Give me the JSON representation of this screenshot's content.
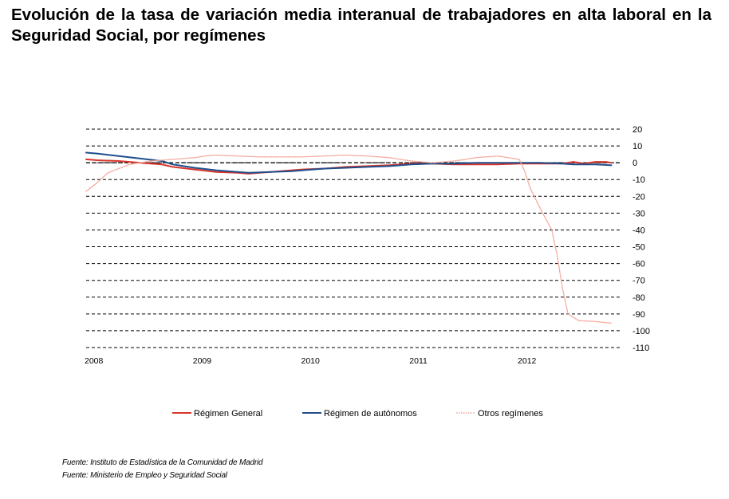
{
  "title": "Evolución de la tasa de variación media interanual de trabajadores en alta laboral en la Seguridad Social, por  regímenes",
  "sources": [
    "Fuente: Instituto de Estadística de la Comunidad de Madrid",
    "Fuente: Ministerio de Empleo y Seguridad Social"
  ],
  "chart_data": {
    "type": "line",
    "title": "",
    "xlabel": "",
    "ylabel": "",
    "x_range": [
      2008,
      2012.95
    ],
    "x_ticks": [
      2008,
      2009,
      2010,
      2011,
      2012
    ],
    "x_tick_labels": [
      "2008",
      "2009",
      "2010",
      "2011",
      "2012"
    ],
    "ylim": [
      -110,
      20
    ],
    "y_ticks": [
      20,
      10,
      0,
      -10,
      -20,
      -30,
      -40,
      -50,
      -60,
      -70,
      -80,
      -90,
      -100,
      -110
    ],
    "y_tick_labels": [
      "20",
      "10",
      "0",
      "-10",
      "-20",
      "-30",
      "-40",
      "-50",
      "-60",
      "-70",
      "-80",
      "-90",
      "-100",
      "-110"
    ],
    "y_axis_side": "right",
    "grid": "dashed horizontal",
    "legend_position": "bottom",
    "series": [
      {
        "name": "Régimen General",
        "color": "#d9352a",
        "style": "solid",
        "points": [
          [
            2008,
            2
          ],
          [
            2008.1,
            1.5
          ],
          [
            2008.3,
            1
          ],
          [
            2008.5,
            0
          ],
          [
            2008.7,
            -1
          ],
          [
            2008.8,
            -2.5
          ],
          [
            2009,
            -4
          ],
          [
            2009.2,
            -5.5
          ],
          [
            2009.4,
            -6
          ],
          [
            2009.5,
            -6.5
          ],
          [
            2009.7,
            -5.5
          ],
          [
            2009.9,
            -4.5
          ],
          [
            2010,
            -4
          ],
          [
            2010.2,
            -3.5
          ],
          [
            2010.4,
            -2.5
          ],
          [
            2010.6,
            -2
          ],
          [
            2010.8,
            -1.5
          ],
          [
            2011,
            -0.5
          ],
          [
            2011.2,
            -0.5
          ],
          [
            2011.4,
            -1
          ],
          [
            2011.6,
            -1
          ],
          [
            2011.8,
            -1
          ],
          [
            2012,
            -0.5
          ],
          [
            2012.2,
            -0.5
          ],
          [
            2012.4,
            -0.5
          ],
          [
            2012.5,
            0.5
          ],
          [
            2012.6,
            -0.5
          ],
          [
            2012.7,
            0.5
          ],
          [
            2012.8,
            0.5
          ],
          [
            2012.85,
            0
          ]
        ]
      },
      {
        "name": "Régimen de autónomos",
        "color": "#1f4e8c",
        "style": "solid",
        "points": [
          [
            2008,
            6
          ],
          [
            2008.1,
            5.5
          ],
          [
            2008.3,
            4
          ],
          [
            2008.5,
            2.5
          ],
          [
            2008.7,
            1
          ],
          [
            2008.8,
            -1
          ],
          [
            2009,
            -3
          ],
          [
            2009.2,
            -4.5
          ],
          [
            2009.4,
            -5.5
          ],
          [
            2009.5,
            -6
          ],
          [
            2009.7,
            -5.5
          ],
          [
            2009.9,
            -5
          ],
          [
            2010,
            -4.5
          ],
          [
            2010.2,
            -3.5
          ],
          [
            2010.4,
            -3
          ],
          [
            2010.6,
            -2.5
          ],
          [
            2010.8,
            -2
          ],
          [
            2011,
            -1
          ],
          [
            2011.2,
            -0.5
          ],
          [
            2011.4,
            -0.5
          ],
          [
            2011.6,
            0
          ],
          [
            2011.8,
            0
          ],
          [
            2012,
            0
          ],
          [
            2012.2,
            0
          ],
          [
            2012.4,
            -0.5
          ],
          [
            2012.5,
            -1
          ],
          [
            2012.6,
            -1
          ],
          [
            2012.7,
            -1
          ],
          [
            2012.85,
            -1.5
          ]
        ]
      },
      {
        "name": "Otros regímenes",
        "color": "#f2a89a",
        "style": "dotted",
        "points": [
          [
            2008,
            -17
          ],
          [
            2008.1,
            -12
          ],
          [
            2008.2,
            -6
          ],
          [
            2008.4,
            -1
          ],
          [
            2008.6,
            1
          ],
          [
            2008.8,
            2
          ],
          [
            2009,
            3
          ],
          [
            2009.1,
            4
          ],
          [
            2009.2,
            4.5
          ],
          [
            2009.4,
            4
          ],
          [
            2009.6,
            3.5
          ],
          [
            2009.8,
            3.5
          ],
          [
            2010,
            3.5
          ],
          [
            2010.2,
            4
          ],
          [
            2010.4,
            4.5
          ],
          [
            2010.6,
            4
          ],
          [
            2010.8,
            3
          ],
          [
            2011,
            1
          ],
          [
            2011.2,
            0
          ],
          [
            2011.4,
            1
          ],
          [
            2011.6,
            3
          ],
          [
            2011.8,
            4
          ],
          [
            2012,
            2
          ],
          [
            2012.05,
            -5
          ],
          [
            2012.1,
            -15
          ],
          [
            2012.2,
            -28
          ],
          [
            2012.3,
            -40
          ],
          [
            2012.35,
            -55
          ],
          [
            2012.4,
            -75
          ],
          [
            2012.45,
            -90
          ],
          [
            2012.55,
            -94
          ],
          [
            2012.7,
            -94.5
          ],
          [
            2012.85,
            -95.5
          ]
        ]
      }
    ]
  }
}
